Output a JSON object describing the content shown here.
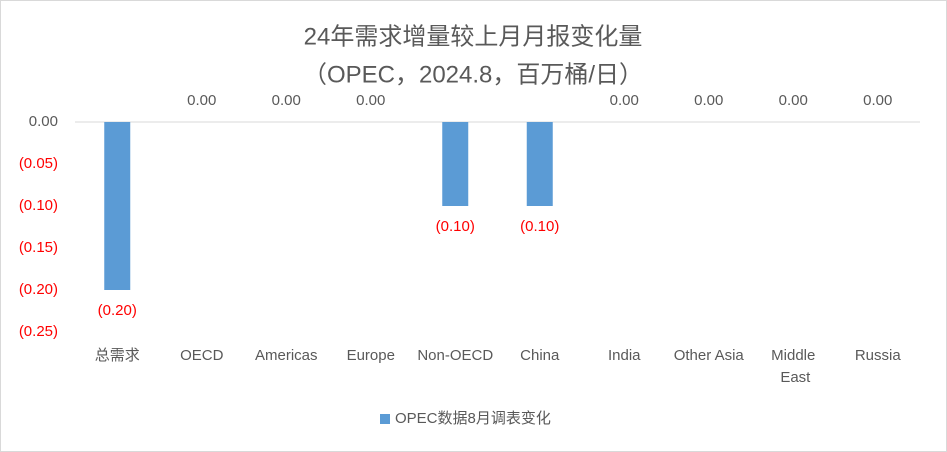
{
  "chart_data": {
    "type": "bar",
    "title": "24年需求增量较上月月报变化量",
    "subtitle": "（OPEC，2024.8，百万桶/日）",
    "categories": [
      "总需求",
      "OECD",
      "Americas",
      "Europe",
      "Non-OECD",
      "China",
      "India",
      "Other Asia",
      "Middle East",
      "Russia"
    ],
    "series": [
      {
        "name": "OPEC数据8月调表变化",
        "color": "#5b9bd5",
        "values": [
          -0.2,
          0,
          0,
          0,
          -0.1,
          -0.1,
          0,
          0,
          0,
          0
        ],
        "value_labels": [
          "(0.20)",
          "0.00",
          "0.00",
          "0.00",
          "(0.10)",
          "(0.10)",
          "0.00",
          "0.00",
          "0.00",
          "0.00"
        ]
      }
    ],
    "ylim": [
      -0.25,
      0
    ],
    "yticks": [
      {
        "value": 0,
        "label": "0.00"
      },
      {
        "value": -0.05,
        "label": "(0.05)"
      },
      {
        "value": -0.1,
        "label": "(0.10)"
      },
      {
        "value": -0.15,
        "label": "(0.15)"
      },
      {
        "value": -0.2,
        "label": "(0.20)"
      },
      {
        "value": -0.25,
        "label": "(0.25)"
      }
    ],
    "negative_color": "#ff0000",
    "grid": false,
    "legend": "bottom"
  }
}
